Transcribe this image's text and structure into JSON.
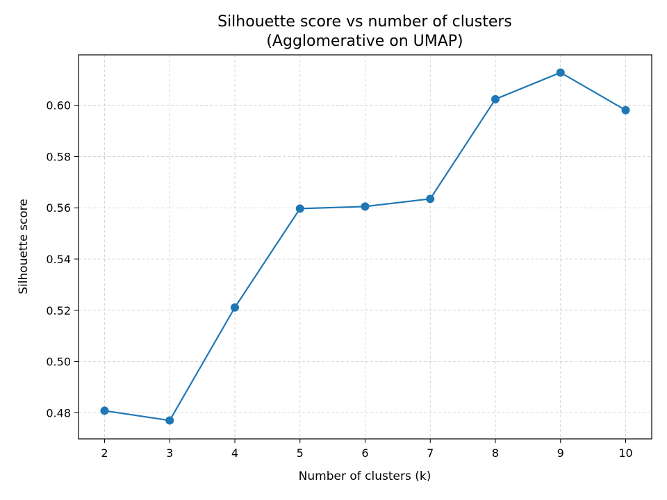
{
  "chart_data": {
    "type": "line",
    "title": "Silhouette score vs number of clusters",
    "subtitle": "(Agglomerative on UMAP)",
    "xlabel": "Number of clusters (k)",
    "ylabel": "Silhouette score",
    "x": [
      2,
      3,
      4,
      5,
      6,
      7,
      8,
      9,
      10
    ],
    "series": [
      {
        "values": [
          0.4808,
          0.477,
          0.5211,
          0.5597,
          0.5605,
          0.5635,
          0.6024,
          0.6128,
          0.5981
        ],
        "color": "#1f77b4",
        "marker": "circle"
      }
    ],
    "xlim": [
      1.6,
      10.4
    ],
    "ylim": [
      0.4698,
      0.6197
    ],
    "xticks": [
      2,
      3,
      4,
      5,
      6,
      7,
      8,
      9,
      10
    ],
    "yticks": [
      0.48,
      0.5,
      0.52,
      0.54,
      0.56,
      0.58,
      0.6
    ],
    "ytick_labels": [
      "0.48",
      "0.50",
      "0.52",
      "0.54",
      "0.56",
      "0.58",
      "0.60"
    ],
    "grid": true,
    "grid_style": "dashed",
    "legend": false
  }
}
